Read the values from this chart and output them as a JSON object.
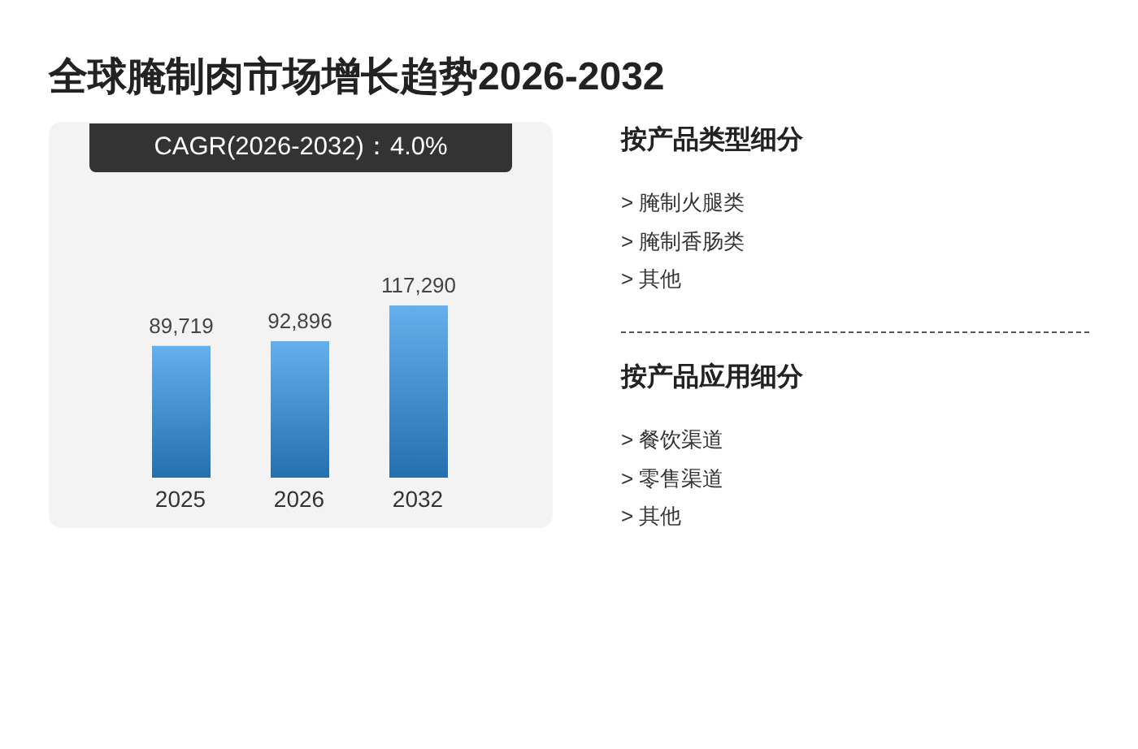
{
  "chart_data": [
    {
      "type": "bar",
      "title": "全球腌制肉市场增长趋势2026-2032",
      "subtitle": "CAGR(2026-2032)：4.0%",
      "categories": [
        "2025",
        "2026",
        "2032"
      ],
      "values": [
        89719,
        92896,
        117290
      ],
      "value_labels": [
        "89,719",
        "92,896",
        "117,290"
      ],
      "color": "#3094e6"
    },
    {
      "type": "other",
      "title": "按产品类型细分",
      "annotations": [
        "> 腌制火腿类",
        "> 腌制香肠类",
        "> 其他"
      ]
    },
    {
      "type": "other",
      "title": "按产品应用细分",
      "annotations": [
        "> 餐饮渠道",
        "> 零售渠道",
        "> 其他"
      ]
    }
  ]
}
